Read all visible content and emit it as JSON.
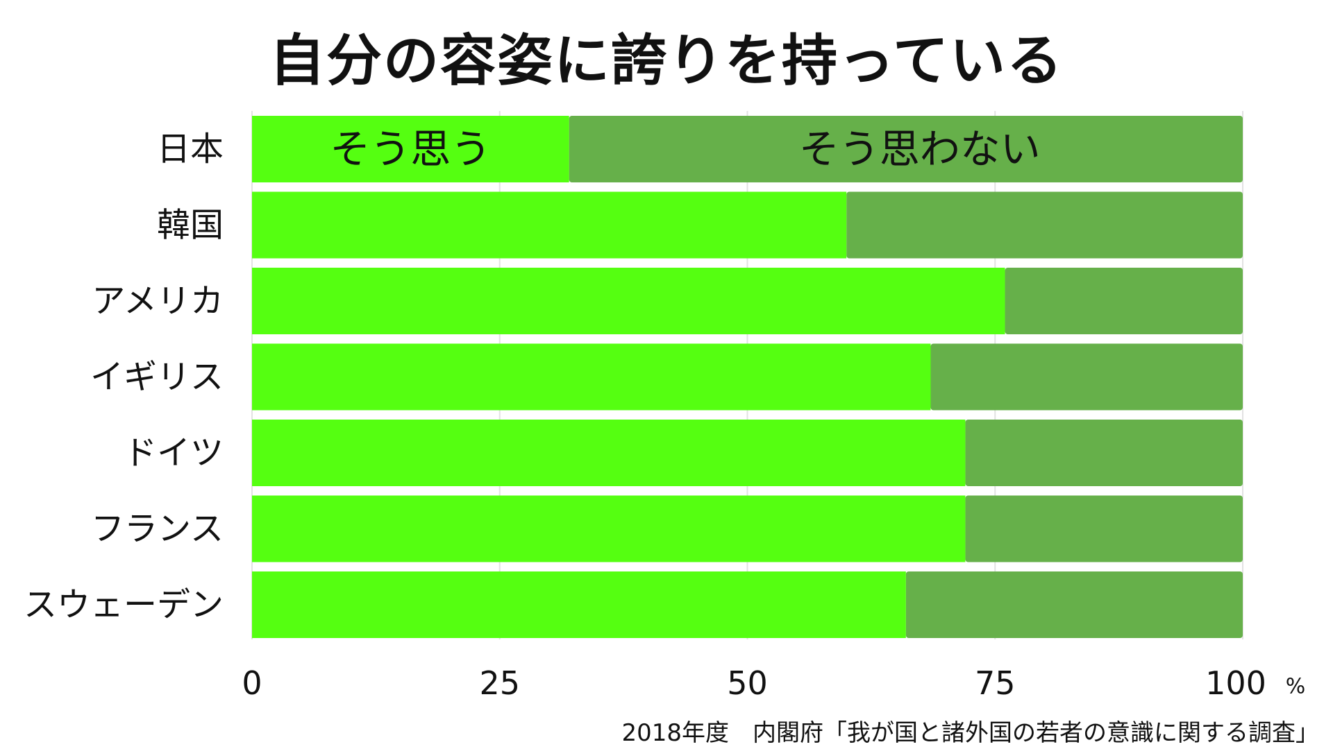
{
  "chart_data": {
    "type": "bar",
    "orientation": "horizontal",
    "stacked": true,
    "title": "自分の容姿に誇りを持っている",
    "categories": [
      "日本",
      "韓国",
      "アメリカ",
      "イギリス",
      "ドイツ",
      "フランス",
      "スウェーデン"
    ],
    "series": [
      {
        "name": "そう思う",
        "color": "#55ff11",
        "values": [
          32,
          60,
          76,
          68.5,
          72,
          72,
          66
        ]
      },
      {
        "name": "そう思わない",
        "color": "#66b04a",
        "values": [
          68,
          40,
          24,
          31.5,
          28,
          28,
          34
        ]
      }
    ],
    "xlim": [
      0,
      100
    ],
    "x_ticks": [
      "0",
      "25",
      "50",
      "75",
      "100"
    ],
    "x_unit": "%",
    "grid": true,
    "legend_placement": "inside first bar"
  },
  "source": "2018年度　内閣府「我が国と諸外国の若者の意識に関する調査」"
}
